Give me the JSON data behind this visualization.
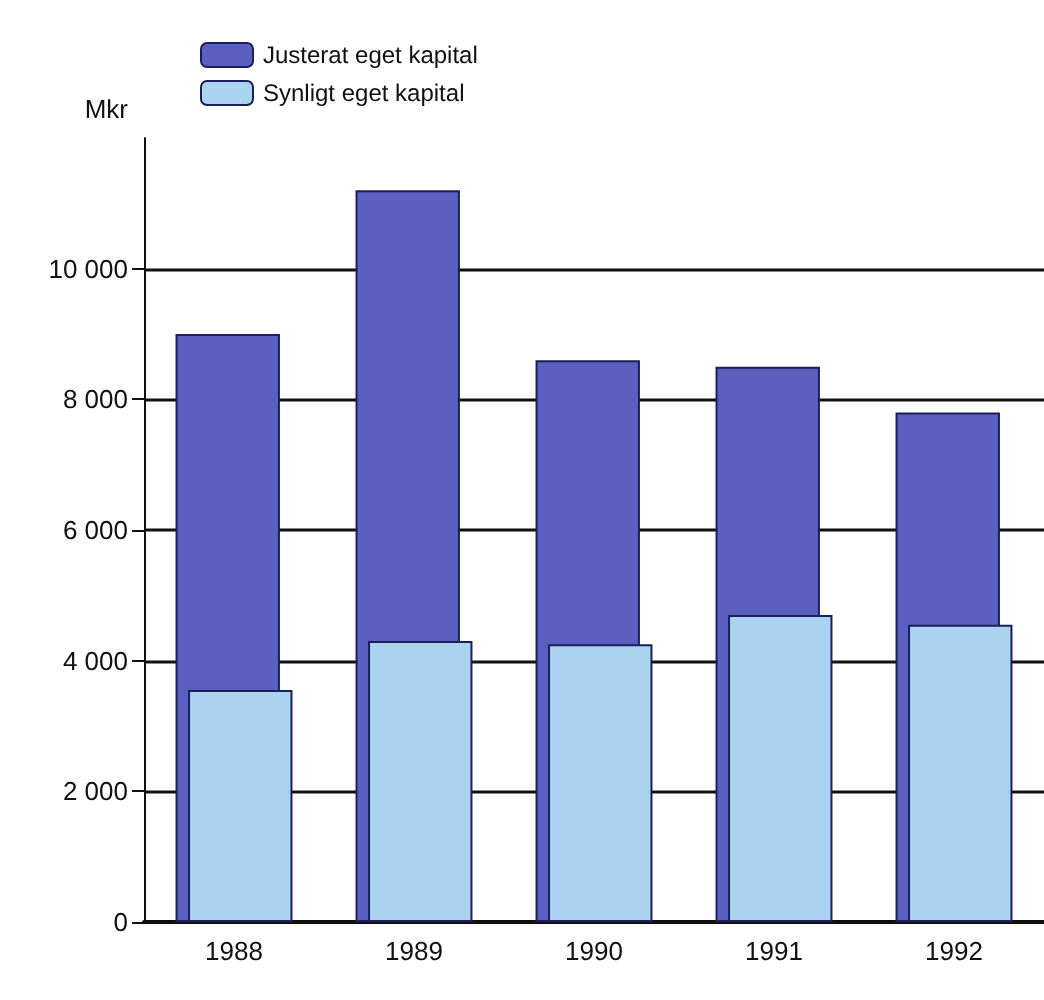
{
  "chart_data": {
    "type": "bar",
    "ylabel": "Mkr",
    "categories": [
      "1988",
      "1989",
      "1990",
      "1991",
      "1992"
    ],
    "series": [
      {
        "name": "Justerat eget kapital",
        "color": "#5a5fc0",
        "values": [
          9000,
          11200,
          8600,
          8500,
          7800
        ]
      },
      {
        "name": "Synligt eget kapital",
        "color": "#a9d3ee",
        "values": [
          3550,
          4300,
          4250,
          4700,
          4550
        ]
      }
    ],
    "ylim": [
      0,
      12000
    ],
    "yticks": [
      0,
      {
        "value": 2000,
        "label": "2 000"
      },
      {
        "value": 4000,
        "label": "4 000"
      },
      {
        "value": 6000,
        "label": "6 000"
      },
      {
        "value": 8000,
        "label": "8 000"
      },
      {
        "value": 10000,
        "label": "10 000"
      }
    ],
    "grid": "y",
    "legend": "top left"
  }
}
